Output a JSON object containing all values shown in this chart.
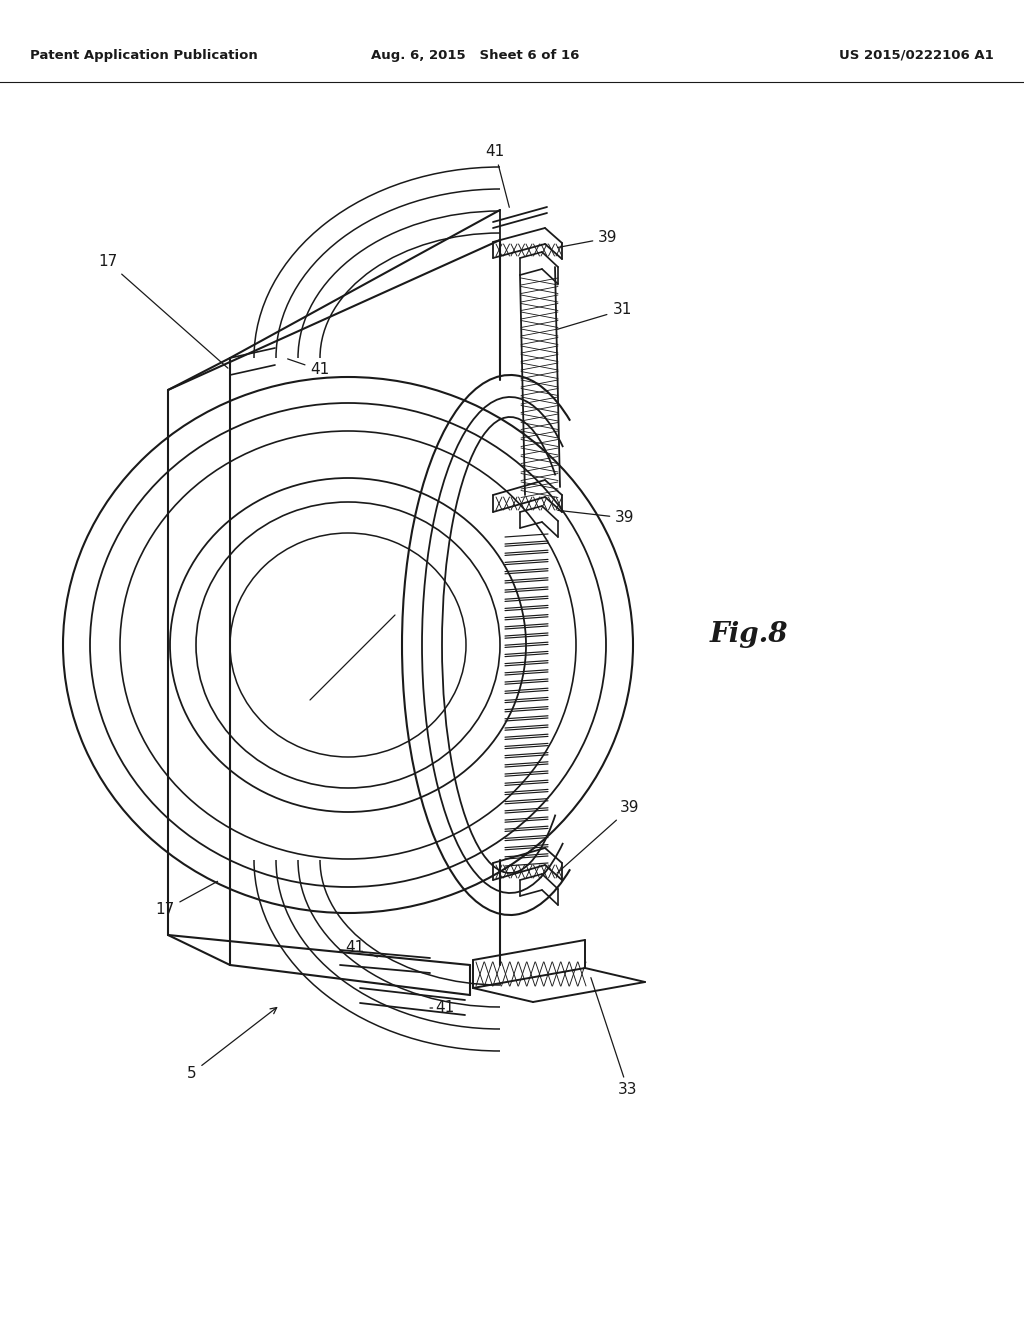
{
  "background_color": "#ffffff",
  "header_left": "Patent Application Publication",
  "header_mid": "Aug. 6, 2015   Sheet 6 of 16",
  "header_right": "US 2015/0222106 A1",
  "fig_label": "Fig.8",
  "line_color": "#1a1a1a"
}
